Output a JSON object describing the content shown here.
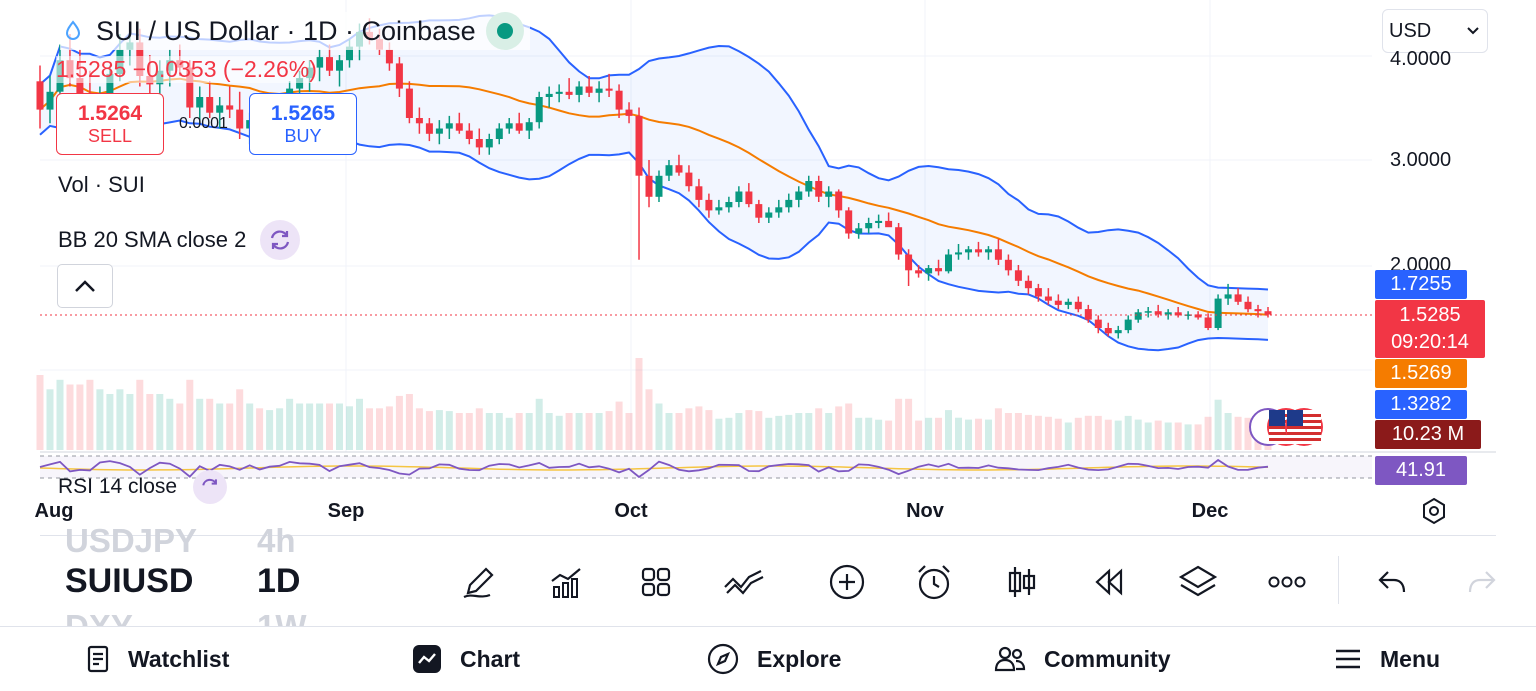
{
  "header": {
    "title": "SUI / US Dollar · 1D · Coinbase",
    "price_change": "1.5285 −0.0353 (−2.26%)"
  },
  "trade": {
    "sell_price": "1.5264",
    "sell_label": "SELL",
    "buy_price": "1.5265",
    "buy_label": "BUY",
    "spread": "0.0001"
  },
  "legend": {
    "volume": "Vol · SUI",
    "bollinger": "BB 20 SMA close 2",
    "rsi": "RSI 14 close"
  },
  "currency": {
    "selected": "USD"
  },
  "price_axis": {
    "labels": [
      "4.0000",
      "3.0000",
      "2.0000"
    ],
    "badges": {
      "bb_upper": "1.7255",
      "last_price": "1.5285",
      "countdown": "09:20:14",
      "bb_basis": "1.5269",
      "bb_lower": "1.3282",
      "volume": "10.23 M",
      "rsi": "41.91"
    }
  },
  "time_axis": [
    "Aug",
    "Sep",
    "Oct",
    "Nov",
    "Dec"
  ],
  "toolbar": {
    "symbols": [
      "USDJPY",
      "SUIUSD",
      "DXY"
    ],
    "timeframes": [
      "4h",
      "1D",
      "1W"
    ]
  },
  "nav": {
    "watchlist": "Watchlist",
    "chart": "Chart",
    "explore": "Explore",
    "community": "Community",
    "menu": "Menu"
  },
  "colors": {
    "up": "#089981",
    "down": "#f23645",
    "bb_band": "#2962ff",
    "bb_basis": "#f57c00",
    "rsi": "#7e57c2",
    "vol_badge": "#8b1a1a"
  },
  "chart_data": {
    "type": "candlestick",
    "symbol": "SUIUSD",
    "interval": "1D",
    "x_ticks": [
      "Aug",
      "Sep",
      "Oct",
      "Nov",
      "Dec"
    ],
    "y_ticks": [
      4.0,
      3.0,
      2.0
    ],
    "last_price": 1.5285,
    "ohlc": [
      [
        3.75,
        3.9,
        3.3,
        3.48
      ],
      [
        3.48,
        3.8,
        3.35,
        3.65
      ],
      [
        3.65,
        4.1,
        3.55,
        3.95
      ],
      [
        3.95,
        4.2,
        3.7,
        3.78
      ],
      [
        3.78,
        4.05,
        3.55,
        3.62
      ],
      [
        3.62,
        3.85,
        3.3,
        3.4
      ],
      [
        3.4,
        3.7,
        3.25,
        3.55
      ],
      [
        3.55,
        3.9,
        3.5,
        3.82
      ],
      [
        3.82,
        4.2,
        3.75,
        4.05
      ],
      [
        4.05,
        4.3,
        3.9,
        4.12
      ],
      [
        4.12,
        4.25,
        3.7,
        3.8
      ],
      [
        3.8,
        4.0,
        3.6,
        3.72
      ],
      [
        3.72,
        3.95,
        3.55,
        3.85
      ],
      [
        3.85,
        4.05,
        3.7,
        3.95
      ],
      [
        3.95,
        4.1,
        3.8,
        3.88
      ],
      [
        3.88,
        3.95,
        3.4,
        3.5
      ],
      [
        3.5,
        3.7,
        3.35,
        3.6
      ],
      [
        3.6,
        3.75,
        3.4,
        3.45
      ],
      [
        3.45,
        3.6,
        3.3,
        3.52
      ],
      [
        3.52,
        3.7,
        3.4,
        3.48
      ],
      [
        3.48,
        3.65,
        3.2,
        3.3
      ],
      [
        3.3,
        3.45,
        3.15,
        3.38
      ],
      [
        3.38,
        3.5,
        3.25,
        3.32
      ],
      [
        3.32,
        3.45,
        3.22,
        3.4
      ],
      [
        3.4,
        3.55,
        3.3,
        3.48
      ],
      [
        3.48,
        3.75,
        3.4,
        3.68
      ],
      [
        3.68,
        3.85,
        3.55,
        3.78
      ],
      [
        3.78,
        3.95,
        3.65,
        3.88
      ],
      [
        3.88,
        4.05,
        3.75,
        3.98
      ],
      [
        3.98,
        4.1,
        3.8,
        3.85
      ],
      [
        3.85,
        4.0,
        3.7,
        3.95
      ],
      [
        3.95,
        4.15,
        3.88,
        4.08
      ],
      [
        4.08,
        4.3,
        3.95,
        4.22
      ],
      [
        4.22,
        4.35,
        4.1,
        4.15
      ],
      [
        4.15,
        4.25,
        4.0,
        4.05
      ],
      [
        4.05,
        4.12,
        3.85,
        3.92
      ],
      [
        3.92,
        3.98,
        3.6,
        3.68
      ],
      [
        3.68,
        3.75,
        3.35,
        3.4
      ],
      [
        3.4,
        3.5,
        3.25,
        3.35
      ],
      [
        3.35,
        3.4,
        3.18,
        3.25
      ],
      [
        3.25,
        3.38,
        3.15,
        3.3
      ],
      [
        3.3,
        3.42,
        3.2,
        3.35
      ],
      [
        3.35,
        3.45,
        3.25,
        3.28
      ],
      [
        3.28,
        3.35,
        3.15,
        3.2
      ],
      [
        3.2,
        3.3,
        3.05,
        3.12
      ],
      [
        3.12,
        3.25,
        3.05,
        3.2
      ],
      [
        3.2,
        3.35,
        3.15,
        3.3
      ],
      [
        3.3,
        3.4,
        3.25,
        3.35
      ],
      [
        3.35,
        3.45,
        3.25,
        3.28
      ],
      [
        3.28,
        3.4,
        3.2,
        3.36
      ],
      [
        3.36,
        3.65,
        3.3,
        3.6
      ],
      [
        3.6,
        3.7,
        3.5,
        3.63
      ],
      [
        3.63,
        3.72,
        3.55,
        3.65
      ],
      [
        3.65,
        3.78,
        3.58,
        3.62
      ],
      [
        3.62,
        3.75,
        3.55,
        3.7
      ],
      [
        3.7,
        3.8,
        3.6,
        3.64
      ],
      [
        3.64,
        3.75,
        3.55,
        3.68
      ],
      [
        3.68,
        3.82,
        3.6,
        3.66
      ],
      [
        3.66,
        3.72,
        3.4,
        3.48
      ],
      [
        3.48,
        3.55,
        3.35,
        3.42
      ],
      [
        3.42,
        3.5,
        2.05,
        2.85
      ],
      [
        2.85,
        3.0,
        2.55,
        2.65
      ],
      [
        2.65,
        2.9,
        2.6,
        2.85
      ],
      [
        2.85,
        3.0,
        2.8,
        2.95
      ],
      [
        2.95,
        3.05,
        2.85,
        2.88
      ],
      [
        2.88,
        2.95,
        2.7,
        2.75
      ],
      [
        2.75,
        2.82,
        2.55,
        2.62
      ],
      [
        2.62,
        2.68,
        2.45,
        2.52
      ],
      [
        2.52,
        2.62,
        2.48,
        2.55
      ],
      [
        2.55,
        2.65,
        2.5,
        2.6
      ],
      [
        2.6,
        2.75,
        2.55,
        2.7
      ],
      [
        2.7,
        2.78,
        2.55,
        2.58
      ],
      [
        2.58,
        2.62,
        2.4,
        2.45
      ],
      [
        2.45,
        2.55,
        2.4,
        2.5
      ],
      [
        2.5,
        2.62,
        2.45,
        2.55
      ],
      [
        2.55,
        2.68,
        2.5,
        2.62
      ],
      [
        2.62,
        2.75,
        2.55,
        2.7
      ],
      [
        2.7,
        2.85,
        2.65,
        2.8
      ],
      [
        2.8,
        2.85,
        2.6,
        2.65
      ],
      [
        2.65,
        2.75,
        2.55,
        2.7
      ],
      [
        2.7,
        2.72,
        2.45,
        2.52
      ],
      [
        2.52,
        2.55,
        2.25,
        2.3
      ],
      [
        2.3,
        2.4,
        2.25,
        2.35
      ],
      [
        2.35,
        2.45,
        2.3,
        2.4
      ],
      [
        2.4,
        2.48,
        2.35,
        2.42
      ],
      [
        2.42,
        2.5,
        2.38,
        2.36
      ],
      [
        2.36,
        2.4,
        2.05,
        2.1
      ],
      [
        2.1,
        2.15,
        1.8,
        1.95
      ],
      [
        1.95,
        2.0,
        1.88,
        1.92
      ],
      [
        1.92,
        2.0,
        1.85,
        1.97
      ],
      [
        1.97,
        2.05,
        1.9,
        1.94
      ],
      [
        1.94,
        2.15,
        1.92,
        2.1
      ],
      [
        2.1,
        2.2,
        2.05,
        2.12
      ],
      [
        2.12,
        2.18,
        2.05,
        2.15
      ],
      [
        2.15,
        2.22,
        2.08,
        2.12
      ],
      [
        2.12,
        2.18,
        2.05,
        2.15
      ],
      [
        2.15,
        2.25,
        2.0,
        2.05
      ],
      [
        2.05,
        2.1,
        1.9,
        1.95
      ],
      [
        1.95,
        2.0,
        1.8,
        1.85
      ],
      [
        1.85,
        1.9,
        1.72,
        1.78
      ],
      [
        1.78,
        1.82,
        1.65,
        1.7
      ],
      [
        1.7,
        1.78,
        1.62,
        1.66
      ],
      [
        1.66,
        1.72,
        1.58,
        1.62
      ],
      [
        1.62,
        1.68,
        1.58,
        1.65
      ],
      [
        1.65,
        1.7,
        1.55,
        1.58
      ],
      [
        1.58,
        1.62,
        1.45,
        1.48
      ],
      [
        1.48,
        1.52,
        1.35,
        1.4
      ],
      [
        1.4,
        1.45,
        1.32,
        1.35
      ],
      [
        1.35,
        1.42,
        1.3,
        1.38
      ],
      [
        1.38,
        1.52,
        1.35,
        1.48
      ],
      [
        1.48,
        1.58,
        1.45,
        1.55
      ],
      [
        1.55,
        1.6,
        1.5,
        1.56
      ],
      [
        1.56,
        1.62,
        1.5,
        1.53
      ],
      [
        1.53,
        1.58,
        1.48,
        1.55
      ],
      [
        1.55,
        1.6,
        1.5,
        1.52
      ],
      [
        1.52,
        1.56,
        1.48,
        1.53
      ],
      [
        1.53,
        1.56,
        1.48,
        1.5
      ],
      [
        1.5,
        1.54,
        1.38,
        1.4
      ],
      [
        1.4,
        1.72,
        1.38,
        1.68
      ],
      [
        1.68,
        1.82,
        1.62,
        1.72
      ],
      [
        1.72,
        1.78,
        1.62,
        1.65
      ],
      [
        1.65,
        1.7,
        1.55,
        1.58
      ],
      [
        1.58,
        1.62,
        1.5,
        1.56
      ],
      [
        1.56,
        1.6,
        1.5,
        1.5285
      ]
    ]
  }
}
